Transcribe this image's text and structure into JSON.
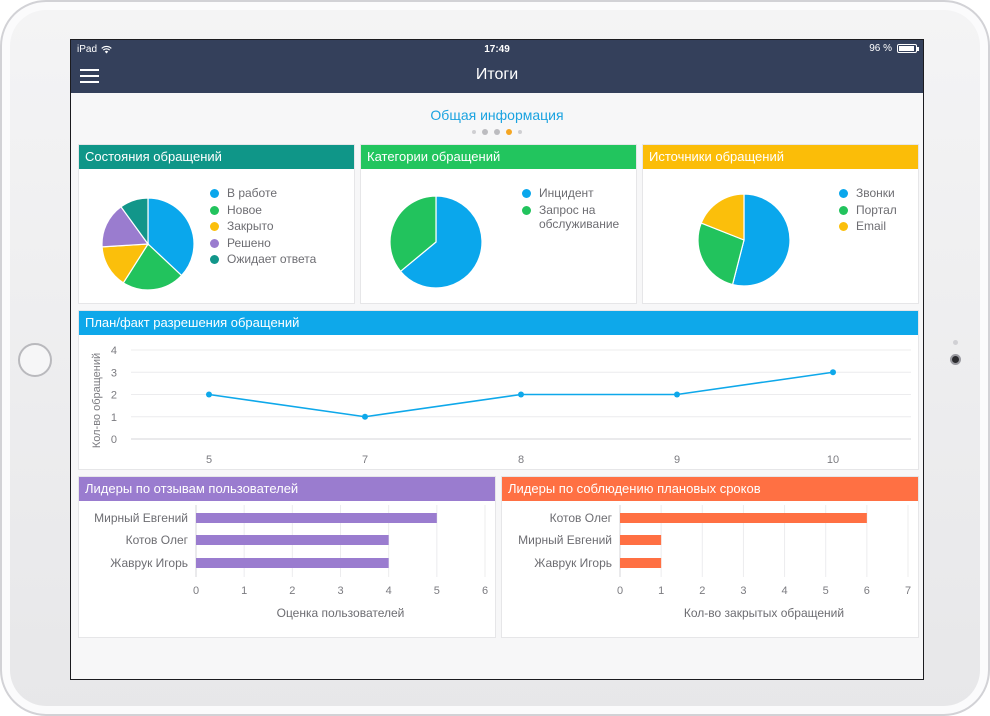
{
  "status_bar": {
    "device": "iPad",
    "time": "17:49",
    "battery": "96 %",
    "battery_level": 0.96
  },
  "nav": {
    "title": "Итоги"
  },
  "page": {
    "subtitle": "Общая информация",
    "page_dots": 5,
    "active_dot": 3
  },
  "colors": {
    "nav": "#34405b",
    "teal": "#0f9688",
    "green": "#22c55e",
    "yellow": "#fbbd08",
    "blue": "#0ea8ea",
    "purple": "#9a7ccf",
    "orange": "#ff7043",
    "pie_blue": "#0aa7ec",
    "pie_green": "#22c35d",
    "pie_yellow": "#fbbf0b",
    "pie_purple": "#9a7ccf",
    "pie_teal": "#12968a"
  },
  "cards": {
    "states": {
      "title": "Состояния обращений"
    },
    "categories": {
      "title": "Категории обращений"
    },
    "sources": {
      "title": "Источники обращений"
    },
    "planfact": {
      "title": "План/факт разрешения обращений"
    },
    "leaders_rating": {
      "title": "Лидеры по отзывам пользователей"
    },
    "leaders_deadline": {
      "title": "Лидеры по соблюдению плановых сроков"
    }
  },
  "chart_data": [
    {
      "type": "pie",
      "title": "Состояния обращений",
      "labels": [
        "В работе",
        "Новое",
        "Закрыто",
        "Решено",
        "Ожидает ответа"
      ],
      "values": [
        37,
        22,
        15,
        16,
        10
      ],
      "colors": [
        "#0aa7ec",
        "#22c35d",
        "#fbbf0b",
        "#9a7ccf",
        "#12968a"
      ]
    },
    {
      "type": "pie",
      "title": "Категории обращений",
      "labels": [
        "Инцидент",
        "Запрос на обслуживание"
      ],
      "values": [
        64,
        36
      ],
      "colors": [
        "#0aa7ec",
        "#22c35d"
      ]
    },
    {
      "type": "pie",
      "title": "Источники обращений",
      "labels": [
        "Звонки",
        "Портал",
        "Email"
      ],
      "values": [
        54,
        27,
        19
      ],
      "colors": [
        "#0aa7ec",
        "#22c35d",
        "#fbbf0b"
      ]
    },
    {
      "type": "line",
      "title": "План/факт разрешения обращений",
      "x": [
        5,
        7,
        8,
        9,
        10
      ],
      "y": [
        2,
        1,
        2,
        2,
        3
      ],
      "ylabel": "Кол-во обращений",
      "ylim": [
        0,
        4
      ],
      "yticks": [
        0,
        1,
        2,
        3,
        4
      ],
      "color": "#0ea8ea"
    },
    {
      "type": "bar",
      "orientation": "horizontal",
      "title": "Лидеры по отзывам пользователей",
      "categories": [
        "Мирный Евгений",
        "Котов Олег",
        "Жаврук Игорь"
      ],
      "values": [
        5,
        4,
        4
      ],
      "xlabel": "Оценка пользователей",
      "xlim": [
        0,
        6
      ],
      "xticks": [
        0,
        1,
        2,
        3,
        4,
        5,
        6
      ],
      "color": "#9a7ccf"
    },
    {
      "type": "bar",
      "orientation": "horizontal",
      "title": "Лидеры по соблюдению плановых сроков",
      "categories": [
        "Котов Олег",
        "Мирный Евгений",
        "Жаврук Игорь"
      ],
      "values": [
        6,
        1,
        1
      ],
      "xlabel": "Кол-во закрытых обращений",
      "xlim": [
        0,
        7
      ],
      "xticks": [
        0,
        1,
        2,
        3,
        4,
        5,
        6,
        7
      ],
      "color": "#ff7043"
    }
  ]
}
